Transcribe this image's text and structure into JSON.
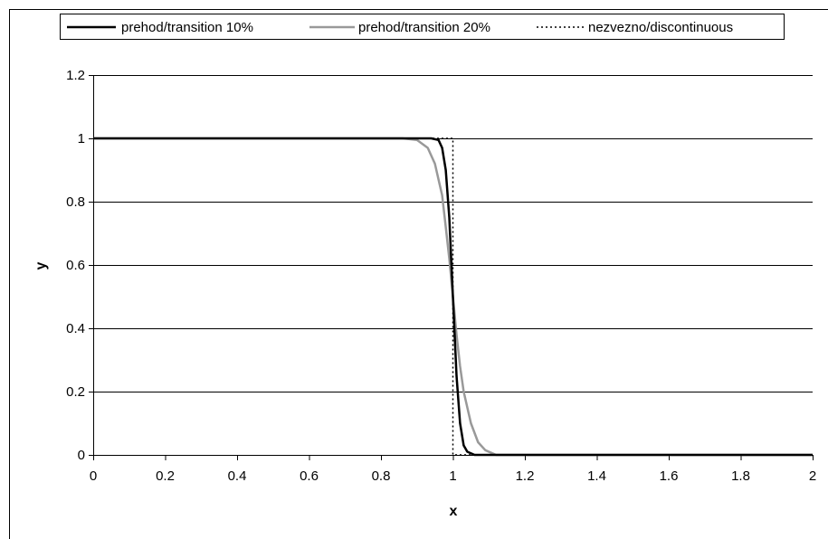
{
  "chart_data": {
    "type": "line",
    "xlabel": "x",
    "ylabel": "y",
    "xlim": [
      0,
      2
    ],
    "ylim": [
      0,
      1.2
    ],
    "x_ticks": [
      0,
      0.2,
      0.4,
      0.6,
      0.8,
      1,
      1.2,
      1.4,
      1.6,
      1.8,
      2
    ],
    "y_ticks": [
      0,
      0.2,
      0.4,
      0.6,
      0.8,
      1,
      1.2
    ],
    "x_tick_labels": [
      "0",
      "0.2",
      "0.4",
      "0.6",
      "0.8",
      "1",
      "1.2",
      "1.4",
      "1.6",
      "1.8",
      "2"
    ],
    "y_tick_labels": [
      "0",
      "0.2",
      "0.4",
      "0.6",
      "0.8",
      "1",
      "1.2"
    ],
    "grid": "horizontal",
    "legend_position": "top",
    "series": [
      {
        "name": "prehod/transition 10%",
        "color": "#000000",
        "style": "solid",
        "x": [
          0,
          0.9,
          0.94,
          0.96,
          0.97,
          0.98,
          0.99,
          1.0,
          1.01,
          1.02,
          1.03,
          1.04,
          1.06,
          2.0
        ],
        "y": [
          1,
          1,
          1,
          0.995,
          0.97,
          0.9,
          0.75,
          0.5,
          0.25,
          0.1,
          0.03,
          0.01,
          0,
          0
        ]
      },
      {
        "name": "prehod/transition 20%",
        "color": "#999999",
        "style": "solid",
        "x": [
          0,
          0.86,
          0.9,
          0.93,
          0.95,
          0.97,
          0.98,
          0.99,
          1.0,
          1.01,
          1.02,
          1.03,
          1.05,
          1.07,
          1.09,
          1.12,
          2.0
        ],
        "y": [
          1,
          1,
          0.995,
          0.97,
          0.92,
          0.82,
          0.72,
          0.62,
          0.5,
          0.38,
          0.28,
          0.2,
          0.1,
          0.04,
          0.015,
          0,
          0
        ]
      },
      {
        "name": "nezvezno/discontinuous",
        "color": "#000000",
        "style": "dotted",
        "x": [
          0,
          1,
          1,
          2
        ],
        "y": [
          1,
          1,
          0,
          0
        ]
      }
    ]
  }
}
